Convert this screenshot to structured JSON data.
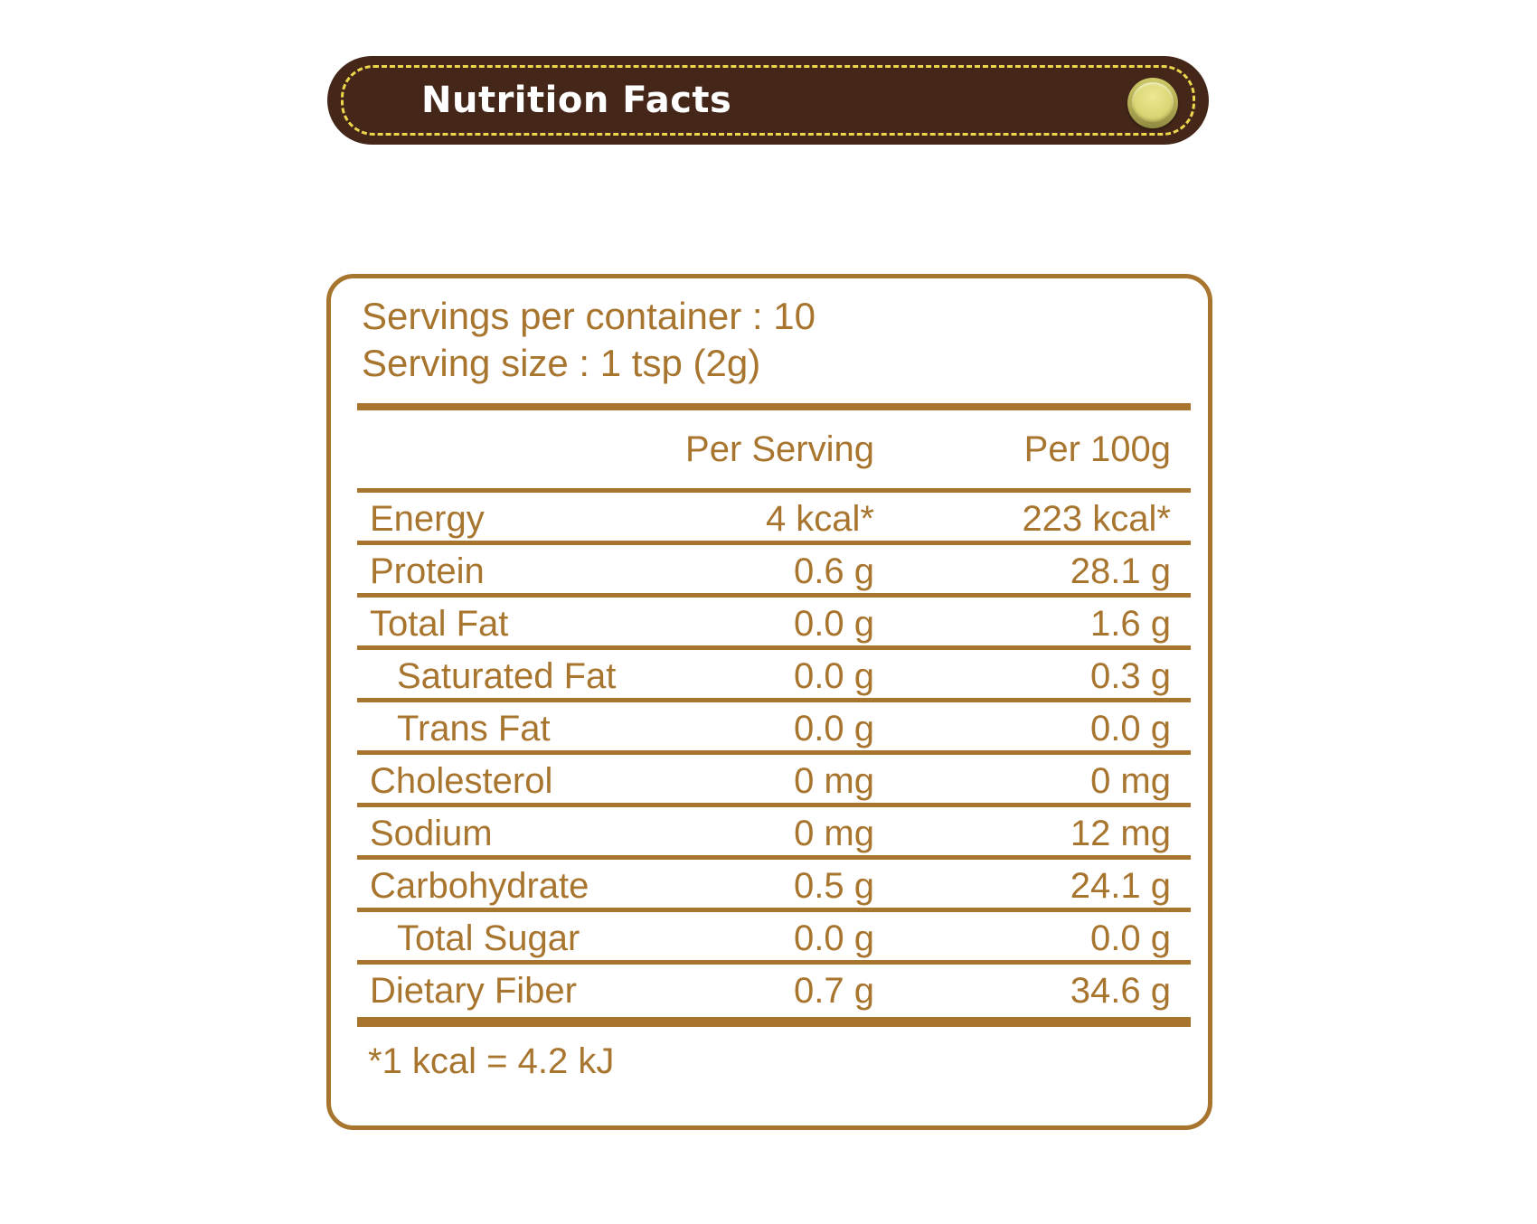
{
  "header": {
    "title": "Nutrition Facts"
  },
  "colors": {
    "banner_background": "#45271A",
    "stitch_yellow": "#EDD84D",
    "label_brown": "#A8752F",
    "snap_button_yellow": "#DCD877",
    "title_text": "#FFFFFF"
  },
  "serving_info": {
    "servings_per_container": "Servings per container : 10",
    "serving_size": "Serving size : 1 tsp (2g)"
  },
  "table": {
    "columns": [
      "Per Serving",
      "Per 100g"
    ],
    "rows": [
      {
        "label": "Energy",
        "per_serving": "4 kcal*",
        "per_100g": "223 kcal*"
      },
      {
        "label": "Protein",
        "per_serving": "0.6 g",
        "per_100g": "28.1 g"
      },
      {
        "label": "Total Fat",
        "per_serving": "0.0 g",
        "per_100g": "1.6 g"
      },
      {
        "label": "Saturated Fat",
        "per_serving": "0.0 g",
        "per_100g": "0.3 g"
      },
      {
        "label": "Trans Fat",
        "per_serving": "0.0 g",
        "per_100g": "0.0 g"
      },
      {
        "label": "Cholesterol",
        "per_serving": "0 mg",
        "per_100g": "0 mg"
      },
      {
        "label": "Sodium",
        "per_serving": "0 mg",
        "per_100g": "12 mg"
      },
      {
        "label": "Carbohydrate",
        "per_serving": "0.5 g",
        "per_100g": "24.1 g"
      },
      {
        "label": "Total Sugar",
        "per_serving": "0.0 g",
        "per_100g": "0.0 g"
      },
      {
        "label": "Dietary Fiber",
        "per_serving": "0.7 g",
        "per_100g": "34.6 g"
      }
    ]
  },
  "footnote": "*1 kcal = 4.2 kJ"
}
